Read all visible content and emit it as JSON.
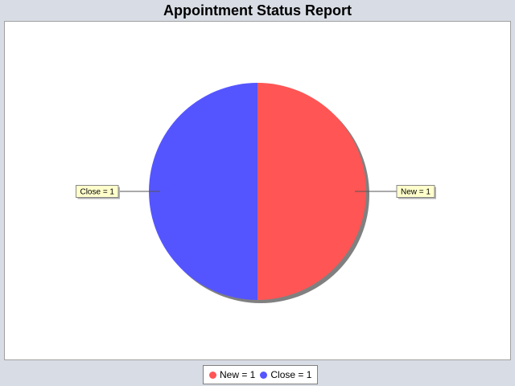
{
  "chart_data": {
    "type": "pie",
    "title": "Appointment Status Report",
    "slices": [
      {
        "name": "New",
        "value": 1,
        "label": "New = 1",
        "color": "#ff5555"
      },
      {
        "name": "Close",
        "value": 1,
        "label": "Close = 1",
        "color": "#5555ff"
      }
    ],
    "legend": {
      "placement": "bottom",
      "items": [
        "New = 1",
        "Close = 1"
      ]
    }
  },
  "colors": {
    "background": "#d8dce4",
    "plot_background": "#ffffff",
    "label_background": "#ffffcc",
    "shadow": "#808080"
  }
}
